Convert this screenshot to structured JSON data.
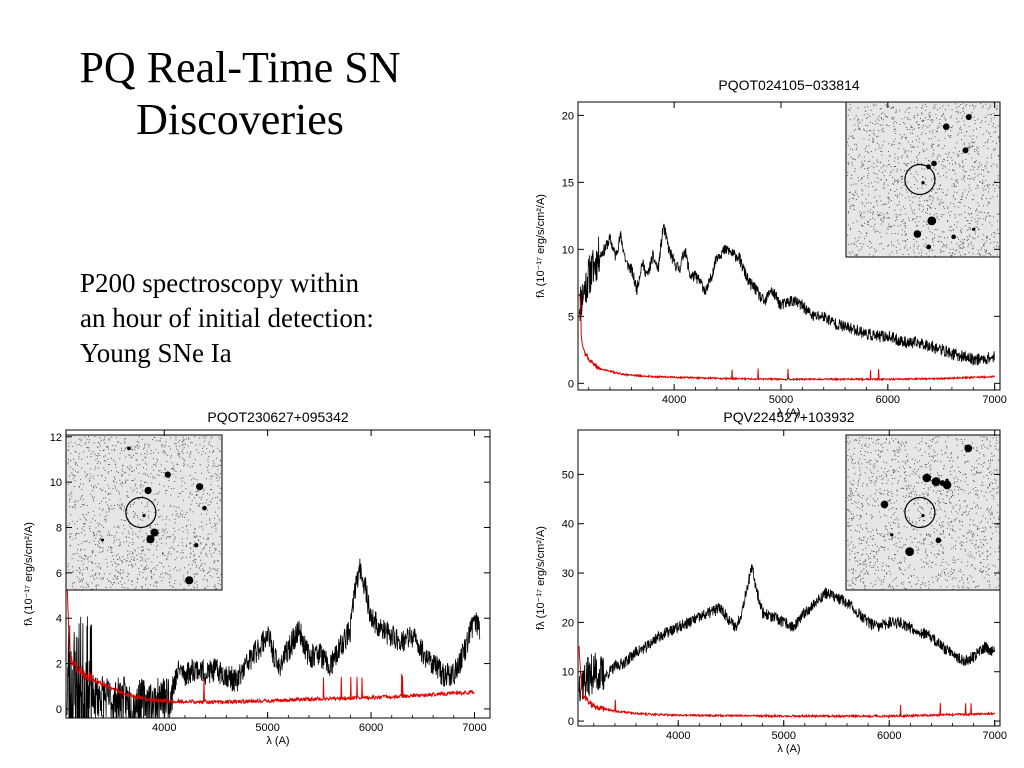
{
  "slide": {
    "title_lines": [
      "PQ Real-Time SN",
      "Discoveries"
    ],
    "body_lines": [
      "P200 spectroscopy within",
      "an hour of initial detection:",
      "Young SNe Ia"
    ]
  },
  "chart_data": [
    {
      "type": "line",
      "title": "PQOT024105−033814",
      "xlabel": "λ  (A)",
      "ylabel": "fλ  (10⁻¹⁷ erg/s/cm²/A)",
      "xlim": [
        3100,
        7050
      ],
      "ylim": [
        -0.5,
        21
      ],
      "xticks": [
        4000,
        5000,
        6000,
        7000
      ],
      "xtick_labels": [
        "4000",
        "5000",
        "6000",
        "7000"
      ],
      "yticks": [
        0,
        5,
        10,
        15,
        20
      ],
      "ytick_labels": [
        "0",
        "5",
        "10",
        "15",
        "20"
      ],
      "inset": "top-right",
      "series": [
        {
          "color": "#000000",
          "x": [
            3120,
            3200,
            3300,
            3350,
            3400,
            3450,
            3500,
            3550,
            3600,
            3650,
            3700,
            3750,
            3800,
            3850,
            3900,
            3950,
            4000,
            4050,
            4100,
            4150,
            4200,
            4250,
            4300,
            4350,
            4400,
            4450,
            4500,
            4550,
            4600,
            4650,
            4700,
            4750,
            4800,
            4850,
            4900,
            4950,
            5000,
            5100,
            5200,
            5300,
            5400,
            5500,
            5600,
            5700,
            5800,
            5900,
            6000,
            6100,
            6200,
            6300,
            6400,
            6500,
            6600,
            6700,
            6800,
            6900,
            7000
          ],
          "y": [
            6,
            8,
            9.5,
            10,
            10.8,
            9.5,
            11,
            9,
            8.5,
            7,
            9,
            8,
            9.5,
            8.5,
            11.8,
            10,
            9,
            8.5,
            10,
            8,
            8,
            7.5,
            6.8,
            8,
            9.5,
            9.8,
            10,
            9.6,
            9.5,
            8.5,
            7.5,
            7.2,
            6.5,
            6,
            7,
            6.5,
            5.8,
            6.2,
            5.8,
            5,
            5,
            4.5,
            4.2,
            4,
            3.7,
            3.5,
            3.5,
            3.2,
            3,
            3,
            2.8,
            2.5,
            2.2,
            2,
            1.8,
            1.8,
            2
          ]
        },
        {
          "color": "#e00000",
          "x": [
            3120,
            3130,
            3150,
            3200,
            3250,
            3300,
            3400,
            3500,
            3600,
            3800,
            4000,
            4500,
            5000,
            5500,
            6000,
            6500,
            7000
          ],
          "y": [
            6.5,
            3.5,
            2.5,
            1.8,
            1.4,
            1.1,
            0.9,
            0.7,
            0.6,
            0.5,
            0.45,
            0.35,
            0.3,
            0.3,
            0.3,
            0.35,
            0.5
          ]
        }
      ]
    },
    {
      "type": "line",
      "title": "PQOT230627+095342",
      "xlabel": "λ  (A)",
      "ylabel": "fλ  (10⁻¹⁷ erg/s/cm²/A)",
      "xlim": [
        3050,
        7150
      ],
      "ylim": [
        -0.4,
        12.3
      ],
      "xticks": [
        4000,
        5000,
        6000,
        7000
      ],
      "xtick_labels": [
        "4000",
        "5000",
        "6000",
        "7000"
      ],
      "yticks": [
        0,
        2,
        4,
        6,
        8,
        10,
        12
      ],
      "ytick_labels": [
        "0",
        "2",
        "4",
        "6",
        "8",
        "10",
        "12"
      ],
      "inset": "top-left",
      "series": [
        {
          "color": "#000000",
          "x": [
            3060,
            3100,
            3200,
            3300,
            3400,
            3500,
            3600,
            3700,
            3800,
            3900,
            4000,
            4050,
            4100,
            4150,
            4200,
            4300,
            4400,
            4500,
            4600,
            4700,
            4800,
            4900,
            5000,
            5100,
            5200,
            5300,
            5400,
            5500,
            5600,
            5700,
            5800,
            5850,
            5900,
            5950,
            6000,
            6100,
            6200,
            6300,
            6400,
            6500,
            6600,
            6700,
            6800,
            6900,
            7000,
            7050
          ],
          "y": [
            1.5,
            0.6,
            0.8,
            0.5,
            0.6,
            0.3,
            0.5,
            0.2,
            0.4,
            0.3,
            0.5,
            0.5,
            1.2,
            1.8,
            1.5,
            1.8,
            1.6,
            1.7,
            1.5,
            1.2,
            2,
            2.6,
            3.3,
            1.8,
            2.6,
            3.5,
            2.3,
            2.5,
            1.8,
            2.7,
            3.5,
            5.5,
            6.2,
            5.2,
            4,
            3.5,
            3.2,
            3,
            3.2,
            2.5,
            2,
            1.5,
            1.5,
            2.5,
            4,
            3.6
          ]
        },
        {
          "color": "#e00000",
          "x": [
            3060,
            3080,
            3100,
            3150,
            3200,
            3300,
            3400,
            3500,
            3600,
            3700,
            3800,
            4000,
            4500,
            5000,
            5500,
            6000,
            6500,
            7000
          ],
          "y": [
            5.5,
            3,
            2.2,
            1.9,
            1.6,
            1.3,
            1.1,
            0.9,
            0.7,
            0.55,
            0.45,
            0.35,
            0.3,
            0.35,
            0.45,
            0.5,
            0.6,
            0.75
          ]
        }
      ]
    },
    {
      "type": "line",
      "title": "PQV224527+103932",
      "xlabel": "λ  (A)",
      "ylabel": "fλ  (10⁻¹⁷ erg/s/cm²/A)",
      "xlim": [
        3050,
        7050
      ],
      "ylim": [
        -1,
        59
      ],
      "xticks": [
        4000,
        5000,
        6000,
        7000
      ],
      "xtick_labels": [
        "4000",
        "5000",
        "6000",
        "7000"
      ],
      "yticks": [
        0,
        10,
        20,
        30,
        40,
        50
      ],
      "ytick_labels": [
        "0",
        "10",
        "20",
        "30",
        "40",
        "50"
      ],
      "inset": "top-right",
      "series": [
        {
          "color": "#000000",
          "x": [
            3100,
            3200,
            3300,
            3400,
            3500,
            3600,
            3700,
            3800,
            3900,
            4000,
            4100,
            4200,
            4300,
            4400,
            4500,
            4550,
            4600,
            4650,
            4700,
            4750,
            4800,
            4900,
            5000,
            5100,
            5200,
            5300,
            5400,
            5500,
            5600,
            5700,
            5800,
            5900,
            6000,
            6100,
            6200,
            6300,
            6400,
            6500,
            6600,
            6700,
            6800,
            6900,
            7000
          ],
          "y": [
            8,
            10,
            9,
            11,
            12,
            14,
            15,
            17,
            18,
            19,
            20,
            21,
            22,
            23,
            20,
            19,
            22,
            27,
            31,
            26,
            22,
            21,
            20,
            19,
            22,
            24,
            26,
            25,
            24,
            22,
            20,
            19,
            20,
            20,
            19,
            18,
            17,
            15,
            14,
            12,
            13,
            15,
            14
          ]
        },
        {
          "color": "#e00000",
          "x": [
            3060,
            3080,
            3100,
            3150,
            3200,
            3300,
            3400,
            3500,
            3600,
            3800,
            4000,
            5000,
            6000,
            7000
          ],
          "y": [
            15,
            8,
            5,
            4,
            3,
            2.5,
            2,
            1.8,
            1.5,
            1.3,
            1.2,
            1,
            1,
            1.5
          ]
        }
      ]
    }
  ]
}
